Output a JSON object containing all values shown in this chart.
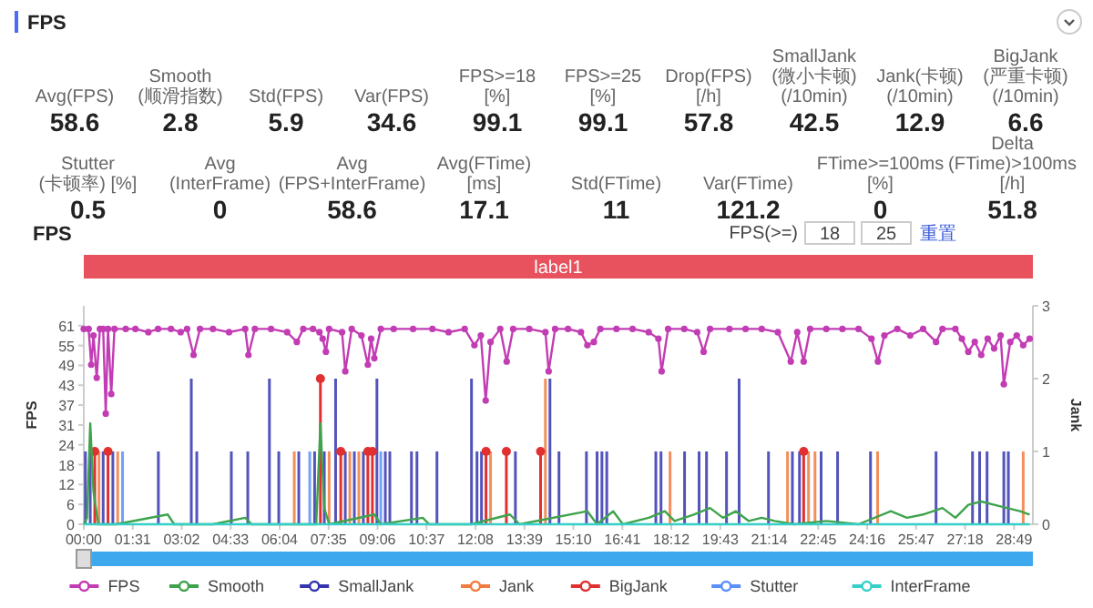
{
  "chart_data": [
    {
      "type": "other",
      "title": "FPS",
      "annotations": [
        "Avg(FPS)",
        "58.6",
        "Smooth(顺滑指数)",
        "2.8",
        "Std(FPS)",
        "5.9",
        "Var(FPS)",
        "34.6",
        "FPS>=18 [%]",
        "99.1",
        "FPS>=25 [%]",
        "99.1",
        "Drop(FPS) [/h]",
        "57.8",
        "SmallJank(微小卡顿) (/10min)",
        "42.5",
        "Jank(卡顿) (/10min)",
        "12.9",
        "BigJank(严重卡顿) (/10min)",
        "6.6",
        "Stutter(卡顿率) [%]",
        "0.5",
        "Avg(InterFrame)",
        "0",
        "Avg(FPS+InterFrame)",
        "58.6",
        "Avg(FTime) [ms]",
        "17.1",
        "Std(FTime)",
        "11",
        "Var(FTime)",
        "121.2",
        "FTime>=100ms [%]",
        "0",
        "Delta(FTime)>100ms [/h]",
        "51.8"
      ]
    },
    {
      "type": "line",
      "title": "FPS",
      "ylabel": "FPS",
      "y2label": "Jank",
      "legend": "bottom",
      "annotations": [
        "FPS(>=)",
        "18",
        "25",
        "重置",
        "label1"
      ],
      "xlim": [
        0,
        29.4
      ],
      "xticks": [
        {
          "value": 0,
          "label": "00:00"
        },
        {
          "value": 1.517,
          "label": "01:31"
        },
        {
          "value": 3.033,
          "label": "03:02"
        },
        {
          "value": 4.55,
          "label": "04:33"
        },
        {
          "value": 6.067,
          "label": "06:04"
        },
        {
          "value": 7.583,
          "label": "07:35"
        },
        {
          "value": 9.1,
          "label": "09:06"
        },
        {
          "value": 10.617,
          "label": "10:37"
        },
        {
          "value": 12.133,
          "label": "12:08"
        },
        {
          "value": 13.65,
          "label": "13:39"
        },
        {
          "value": 15.167,
          "label": "15:10"
        },
        {
          "value": 16.683,
          "label": "16:41"
        },
        {
          "value": 18.2,
          "label": "18:12"
        },
        {
          "value": 19.717,
          "label": "19:43"
        },
        {
          "value": 21.233,
          "label": "21:14"
        },
        {
          "value": 22.75,
          "label": "22:45"
        },
        {
          "value": 24.267,
          "label": "24:16"
        },
        {
          "value": 25.783,
          "label": "25:47"
        },
        {
          "value": 27.3,
          "label": "27:18"
        },
        {
          "value": 28.817,
          "label": "28:49"
        }
      ],
      "ylim": [
        0,
        67.1
      ],
      "yticks": [
        0,
        {
          "value": 6.1,
          "label": "6"
        },
        {
          "value": 12.2,
          "label": "12"
        },
        {
          "value": 18.3,
          "label": "18"
        },
        {
          "value": 24.4,
          "label": "24"
        },
        {
          "value": 30.5,
          "label": "31"
        },
        {
          "value": 36.6,
          "label": "37"
        },
        {
          "value": 42.7,
          "label": "43"
        },
        {
          "value": 48.8,
          "label": "49"
        },
        {
          "value": 54.9,
          "label": "55"
        },
        61
      ],
      "y2lim": [
        0,
        3
      ],
      "y2ticks": [
        0,
        1,
        2,
        3
      ],
      "series": [
        {
          "name": "FPS",
          "color": "#c23cb4",
          "type": "line",
          "marker": "circle",
          "x": [
            0,
            0.15,
            0.23,
            0.3,
            0.4,
            0.5,
            0.6,
            0.68,
            0.75,
            0.85,
            0.95,
            1.3,
            1.6,
            2.0,
            2.3,
            2.7,
            3.0,
            3.2,
            3.4,
            3.6,
            4.0,
            4.5,
            5.0,
            5.1,
            5.3,
            5.8,
            6.3,
            6.6,
            6.8,
            7.1,
            7.3,
            7.4,
            7.5,
            7.6,
            8.0,
            8.1,
            8.3,
            8.6,
            8.8,
            8.9,
            9.0,
            9.2,
            9.6,
            10.2,
            10.8,
            11.3,
            11.8,
            12.1,
            12.3,
            12.45,
            12.6,
            12.9,
            13.1,
            13.3,
            13.8,
            14.3,
            14.4,
            14.6,
            15.0,
            15.4,
            15.6,
            15.8,
            16.0,
            16.5,
            17.0,
            17.5,
            17.8,
            17.9,
            18.1,
            18.6,
            19.0,
            19.2,
            19.4,
            20.0,
            20.5,
            21.0,
            21.5,
            21.9,
            22.1,
            22.3,
            22.5,
            23.0,
            23.5,
            24.0,
            24.4,
            24.6,
            24.8,
            25.2,
            25.6,
            26.0,
            26.4,
            26.6,
            27.0,
            27.2,
            27.4,
            27.6,
            27.8,
            28.0,
            28.2,
            28.4,
            28.5,
            28.7,
            28.9,
            29.1,
            29.3
          ],
          "values": [
            60,
            60,
            49,
            58,
            45,
            60,
            60,
            34,
            60,
            40,
            60,
            60,
            60,
            59,
            60,
            60,
            59,
            60,
            52,
            60,
            60,
            59,
            60,
            52,
            60,
            60,
            59,
            56,
            60,
            60,
            59,
            57,
            53,
            60,
            59,
            47,
            60,
            58,
            49,
            57,
            51,
            60,
            60,
            60,
            60,
            59,
            60,
            55,
            58,
            38,
            56,
            60,
            50,
            60,
            60,
            59,
            47,
            60,
            60,
            59,
            55,
            56,
            60,
            60,
            60,
            59,
            57,
            47,
            60,
            60,
            59,
            53,
            60,
            60,
            60,
            60,
            59,
            50,
            59,
            50,
            60,
            60,
            60,
            60,
            57,
            50,
            58,
            60,
            58,
            60,
            56,
            60,
            60,
            57,
            53,
            56,
            52,
            57,
            54,
            58,
            43,
            56,
            58,
            55,
            57
          ]
        },
        {
          "name": "Smooth",
          "color": "#3fa34d",
          "type": "line",
          "x": [
            0,
            0.1,
            0.2,
            0.3,
            0.45,
            1.0,
            2.6,
            2.8,
            4.0,
            5.0,
            5.2,
            7.2,
            7.33,
            7.45,
            7.6,
            9.0,
            9.2,
            10.5,
            10.7,
            12.0,
            13.2,
            13.5,
            15.6,
            15.9,
            16.4,
            16.7,
            17.5,
            18.0,
            18.3,
            18.9,
            19.4,
            19.8,
            20.2,
            20.6,
            21.0,
            21.4,
            22.0,
            23.0,
            24.0,
            25.0,
            25.5,
            26.0,
            26.6,
            27.0,
            27.4,
            27.8,
            28.2,
            28.6,
            29.0,
            29.3
          ],
          "values": [
            0,
            2,
            31,
            10,
            0,
            0,
            3,
            0,
            0,
            2,
            0,
            0,
            31,
            5,
            0,
            3,
            0,
            2,
            0,
            0,
            3,
            0,
            4,
            0,
            4,
            0,
            2,
            4,
            1,
            3,
            5,
            2,
            4,
            1,
            2,
            1,
            0,
            1,
            0,
            4,
            2,
            3,
            5,
            2,
            6,
            7,
            6,
            5,
            4,
            3
          ]
        },
        {
          "name": "SmallJank",
          "color": "#3535b0",
          "type": "bar",
          "axis": "y2",
          "x": [
            0.05,
            0.2,
            0.6,
            0.9,
            2.31,
            3.33,
            3.5,
            4.57,
            5.08,
            5.75,
            6.04,
            6.66,
            7.15,
            7.45,
            7.8,
            8.1,
            8.38,
            8.66,
            9.08,
            9.34,
            9.48,
            10.15,
            10.32,
            10.94,
            12.01,
            12.18,
            12.32,
            13.37,
            14.44,
            14.72,
            15.57,
            15.9,
            16.05,
            16.2,
            17.72,
            17.88,
            18.61,
            19.06,
            19.29,
            19.91,
            20.3,
            21.21,
            21.95,
            22.17,
            22.84,
            23.35,
            24.37,
            26.4,
            27.53,
            27.75,
            27.98,
            28.5,
            28.64
          ],
          "values": [
            1,
            1,
            1,
            1,
            1,
            2,
            1,
            1,
            1,
            2,
            1,
            1,
            1,
            1,
            2,
            1,
            1,
            1,
            2,
            1,
            1,
            1,
            1,
            1,
            2,
            1,
            1,
            1,
            2,
            1,
            1,
            1,
            1,
            1,
            1,
            1,
            1,
            1,
            1,
            1,
            2,
            1,
            1,
            1,
            1,
            1,
            1,
            1,
            1,
            1,
            1,
            1,
            1
          ]
        },
        {
          "name": "Jank",
          "color": "#f07b3f",
          "type": "bar",
          "axis": "y2",
          "x": [
            0.47,
            1.05,
            6.52,
            7.6,
            8.24,
            8.52,
            12.6,
            14.3,
            18.16,
            21.8,
            22.45,
            22.65,
            24.59,
            29.1
          ],
          "values": [
            1,
            1,
            1,
            1,
            1,
            1,
            1,
            2,
            1,
            1,
            1,
            1,
            1,
            1
          ]
        },
        {
          "name": "BigJank",
          "color": "#e0302f",
          "type": "lollipop",
          "axis": "y2",
          "x": [
            0.34,
            0.75,
            7.33,
            7.96,
            8.8,
            8.94,
            12.46,
            13.09,
            14.15,
            22.3
          ],
          "values": [
            1,
            1,
            2,
            1,
            1,
            1,
            1,
            1,
            1,
            1
          ]
        },
        {
          "name": "Stutter",
          "color": "#5b8ff9",
          "type": "bar",
          "axis": "y2",
          "x": [
            1.2,
            7.0,
            9.2
          ],
          "values": [
            1,
            1,
            1
          ]
        },
        {
          "name": "InterFrame",
          "color": "#36cfc9",
          "type": "line",
          "x": [
            0,
            29.3
          ],
          "values": [
            0,
            0
          ]
        }
      ]
    }
  ]
}
